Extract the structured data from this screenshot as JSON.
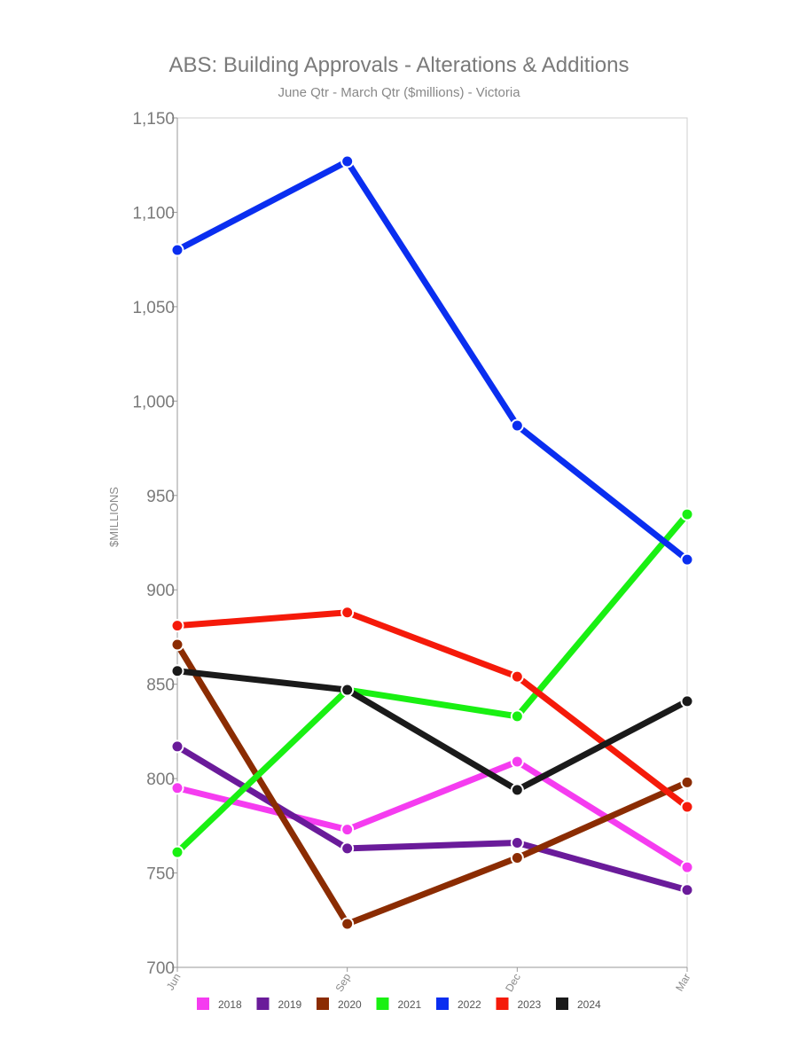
{
  "chart_data": {
    "type": "line",
    "title": "ABS: Building Approvals - Alterations & Additions",
    "subtitle": "June Qtr - March Qtr ($millions) - Victoria",
    "ylabel": "$MILLIONS",
    "xlabel": "",
    "categories": [
      "Jun",
      "Sep",
      "Dec",
      "Mar"
    ],
    "ylim": [
      700,
      1150
    ],
    "yticks": [
      700,
      750,
      800,
      850,
      900,
      950,
      1000,
      1050,
      1100,
      1150
    ],
    "ytick_labels": [
      "700",
      "750",
      "800",
      "850",
      "900",
      "950",
      "1,000",
      "1,050",
      "1,100",
      "1,150"
    ],
    "grid": false,
    "legend_position": "bottom",
    "series": [
      {
        "name": "2018",
        "color": "#f53cf0",
        "values": [
          795,
          773,
          809,
          753
        ]
      },
      {
        "name": "2019",
        "color": "#6a1b9a",
        "values": [
          817,
          763,
          766,
          741
        ]
      },
      {
        "name": "2020",
        "color": "#8b2c02",
        "values": [
          871,
          723,
          758,
          798
        ]
      },
      {
        "name": "2021",
        "color": "#19f012",
        "values": [
          761,
          847,
          833,
          940
        ]
      },
      {
        "name": "2022",
        "color": "#0a2ef0",
        "values": [
          1080,
          1127,
          987,
          916
        ]
      },
      {
        "name": "2023",
        "color": "#f51a0a",
        "values": [
          881,
          888,
          854,
          785
        ]
      },
      {
        "name": "2024",
        "color": "#1a1a1a",
        "values": [
          857,
          847,
          794,
          841
        ]
      }
    ]
  }
}
